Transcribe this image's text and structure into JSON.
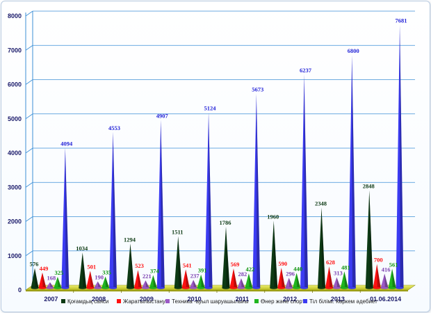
{
  "chart_data": {
    "type": "bar",
    "bar_shape": "cone",
    "categories": [
      "2007",
      "2008",
      "2009",
      "2010",
      "2011",
      "2012",
      "2013",
      "01.06.2014"
    ],
    "ylim": [
      0,
      8000
    ],
    "yticks": [
      0,
      1000,
      2000,
      3000,
      4000,
      5000,
      6000,
      7000,
      8000
    ],
    "grid": true,
    "legend_position": "bottom",
    "series": [
      {
        "name": "Қоғамдық саяси",
        "color": "#0d3a14",
        "label_color": "#0d3a14",
        "values": [
          576,
          1034,
          1294,
          1511,
          1786,
          1960,
          2348,
          2848
        ]
      },
      {
        "name": "Жаратылыстану",
        "color": "#ff1010",
        "label_color": "#ff1010",
        "values": [
          449,
          501,
          523,
          541,
          569,
          590,
          628,
          700
        ]
      },
      {
        "name": "Техника -ауыл шаруашылығы",
        "color": "#9b59c6",
        "label_color": "#7a3fb0",
        "values": [
          168,
          190,
          221,
          237,
          282,
          296,
          313,
          416
        ]
      },
      {
        "name": "Өнер және спорт",
        "color": "#1fb51f",
        "label_color": "#109610",
        "values": [
          325,
          335,
          374,
          391,
          422,
          440,
          481,
          561
        ]
      },
      {
        "name": "Тіл білімі. Көркем әдебиет",
        "color": "#3b3bf2",
        "label_color": "#2424d8",
        "values": [
          4094,
          4553,
          4907,
          5124,
          5673,
          6237,
          6800,
          7681
        ]
      }
    ]
  }
}
